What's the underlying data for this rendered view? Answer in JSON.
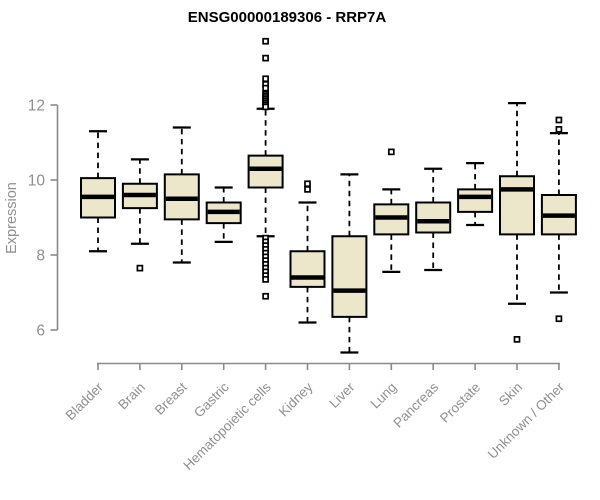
{
  "chart_data": {
    "type": "boxplot",
    "title": "ENSG00000189306 - RRP7A",
    "ylabel": "Expression",
    "xlabel": "",
    "yticks": [
      6,
      8,
      10,
      12
    ],
    "ylim": [
      5.2,
      13.9
    ],
    "grid": false,
    "legend": "none",
    "box_fill_color": "#ece7cb",
    "box_stroke_color": "#000000",
    "axis_color": "#8a8a8a",
    "axis_text_color": "#8f8f8f",
    "title_color": "#000000",
    "categories": [
      "Bladder",
      "Brain",
      "Breast",
      "Gastric",
      "Hematopoietic cells",
      "Kidney",
      "Liver",
      "Lung",
      "Pancreas",
      "Prostate",
      "Skin",
      "Unknown / Other"
    ],
    "boxes": [
      {
        "category": "Bladder",
        "whisker_low": 8.1,
        "q1": 9.0,
        "median": 9.55,
        "q3": 10.05,
        "whisker_high": 11.3,
        "outliers": []
      },
      {
        "category": "Brain",
        "whisker_low": 8.3,
        "q1": 9.25,
        "median": 9.6,
        "q3": 9.9,
        "whisker_high": 10.55,
        "outliers": [
          7.65
        ]
      },
      {
        "category": "Breast",
        "whisker_low": 7.8,
        "q1": 8.95,
        "median": 9.5,
        "q3": 10.15,
        "whisker_high": 11.4,
        "outliers": []
      },
      {
        "category": "Gastric",
        "whisker_low": 8.35,
        "q1": 8.85,
        "median": 9.15,
        "q3": 9.4,
        "whisker_high": 9.8,
        "outliers": []
      },
      {
        "category": "Hematopoietic cells",
        "whisker_low": 8.5,
        "q1": 9.8,
        "median": 10.3,
        "q3": 10.65,
        "whisker_high": 11.9,
        "outliers": [
          13.7,
          13.25,
          12.7,
          12.55,
          12.45,
          12.3,
          12.25,
          12.2,
          12.15,
          12.1,
          12.05,
          12.0,
          11.95,
          8.45,
          8.35,
          8.25,
          8.15,
          8.05,
          7.95,
          7.85,
          7.75,
          7.65,
          7.55,
          7.45,
          7.35,
          6.9
        ]
      },
      {
        "category": "Kidney",
        "whisker_low": 6.2,
        "q1": 7.15,
        "median": 7.4,
        "q3": 8.1,
        "whisker_high": 9.4,
        "outliers": [
          9.9,
          9.75
        ]
      },
      {
        "category": "Liver",
        "whisker_low": 5.4,
        "q1": 6.35,
        "median": 7.05,
        "q3": 8.5,
        "whisker_high": 10.15,
        "outliers": []
      },
      {
        "category": "Lung",
        "whisker_low": 7.55,
        "q1": 8.55,
        "median": 9.0,
        "q3": 9.35,
        "whisker_high": 9.75,
        "outliers": [
          10.75
        ]
      },
      {
        "category": "Pancreas",
        "whisker_low": 7.6,
        "q1": 8.6,
        "median": 8.9,
        "q3": 9.4,
        "whisker_high": 10.3,
        "outliers": []
      },
      {
        "category": "Prostate",
        "whisker_low": 8.8,
        "q1": 9.15,
        "median": 9.55,
        "q3": 9.75,
        "whisker_high": 10.45,
        "outliers": []
      },
      {
        "category": "Skin",
        "whisker_low": 6.7,
        "q1": 8.55,
        "median": 9.75,
        "q3": 10.1,
        "whisker_high": 12.05,
        "outliers": [
          5.75
        ]
      },
      {
        "category": "Unknown / Other",
        "whisker_low": 7.0,
        "q1": 8.55,
        "median": 9.05,
        "q3": 9.6,
        "whisker_high": 11.25,
        "outliers": [
          11.6,
          11.35,
          6.3
        ]
      }
    ]
  }
}
